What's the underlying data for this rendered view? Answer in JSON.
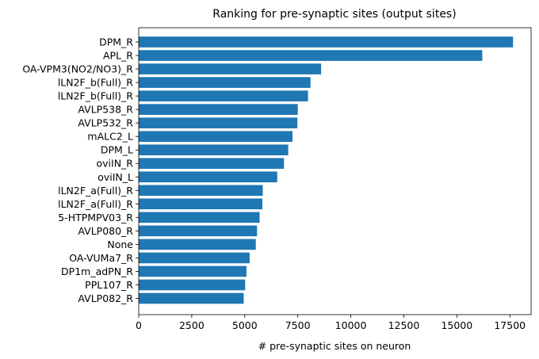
{
  "chart_data": {
    "type": "bar",
    "orientation": "horizontal",
    "title": "Ranking for pre-synaptic sites (output sites)",
    "xlabel": "# pre-synaptic sites on neuron",
    "ylabel": "",
    "xlim": [
      0,
      18500
    ],
    "xticks": [
      0,
      2500,
      5000,
      7500,
      10000,
      12500,
      15000,
      17500
    ],
    "grid": false,
    "bar_color": "#1f77b4",
    "categories": [
      "DPM_R",
      "APL_R",
      "OA-VPM3(NO2/NO3)_R",
      "lLN2F_b(Full)_R",
      "lLN2F_b(Full)_R",
      "AVLP538_R",
      "AVLP532_R",
      "mALC2_L",
      "DPM_L",
      "oviIN_R",
      "oviIN_L",
      "lLN2F_a(Full)_R",
      "lLN2F_a(Full)_R",
      "5-HTPMPV03_R",
      "AVLP080_R",
      "None",
      "OA-VUMa7_R",
      "DP1m_adPN_R",
      "PPL107_R",
      "AVLP082_R"
    ],
    "values": [
      17650,
      16200,
      8600,
      8100,
      7980,
      7500,
      7480,
      7250,
      7050,
      6850,
      6530,
      5850,
      5830,
      5700,
      5580,
      5520,
      5230,
      5080,
      5020,
      4950
    ]
  }
}
